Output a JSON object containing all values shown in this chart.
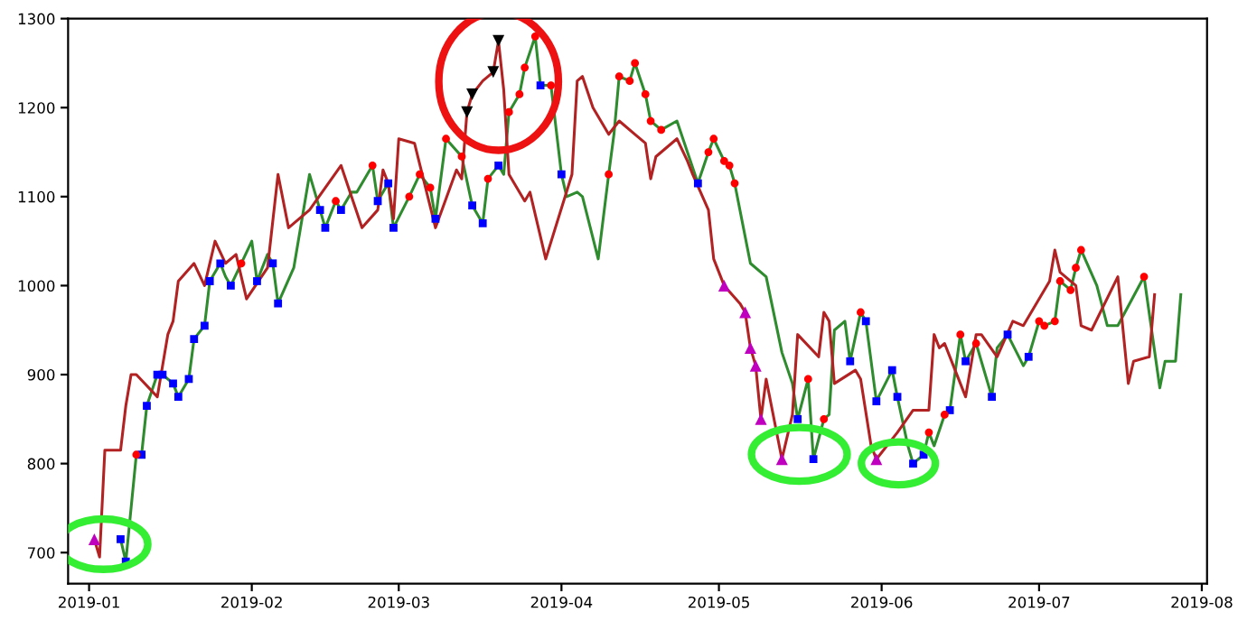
{
  "chart_data": {
    "type": "line",
    "xlim": [
      "2018-12-28",
      "2019-08-02"
    ],
    "xticks": [
      "2019-01",
      "2019-02",
      "2019-03",
      "2019-04",
      "2019-05",
      "2019-06",
      "2019-07",
      "2019-08"
    ],
    "ylim": [
      665,
      1300
    ],
    "yticks": [
      700,
      800,
      900,
      1000,
      1100,
      1200,
      1300
    ],
    "grid": false,
    "legend": false,
    "series": [
      {
        "type": "line",
        "color": "#2e8b2e",
        "marker": "none",
        "x": [
          "2019-01-07",
          "2019-01-08",
          "2019-01-10",
          "2019-01-11",
          "2019-01-12",
          "2019-01-14",
          "2019-01-15",
          "2019-01-17",
          "2019-01-18",
          "2019-01-20",
          "2019-01-21",
          "2019-01-23",
          "2019-01-24",
          "2019-01-26",
          "2019-01-27",
          "2019-01-28",
          "2019-01-30",
          "2019-02-01",
          "2019-02-02",
          "2019-02-04",
          "2019-02-05",
          "2019-02-06",
          "2019-02-09",
          "2019-02-12",
          "2019-02-14",
          "2019-02-15",
          "2019-02-17",
          "2019-02-18",
          "2019-02-20",
          "2019-02-21",
          "2019-02-24",
          "2019-02-25",
          "2019-02-27",
          "2019-02-28",
          "2019-03-03",
          "2019-03-05",
          "2019-03-07",
          "2019-03-08",
          "2019-03-10",
          "2019-03-13",
          "2019-03-15",
          "2019-03-17",
          "2019-03-18",
          "2019-03-20",
          "2019-03-21",
          "2019-03-22",
          "2019-03-24",
          "2019-03-25",
          "2019-03-27",
          "2019-03-28",
          "2019-03-30",
          "2019-04-01",
          "2019-04-02",
          "2019-04-04",
          "2019-04-05",
          "2019-04-08",
          "2019-04-10",
          "2019-04-11",
          "2019-04-12",
          "2019-04-14",
          "2019-04-15",
          "2019-04-17",
          "2019-04-18",
          "2019-04-20",
          "2019-04-23",
          "2019-04-27",
          "2019-04-29",
          "2019-04-30",
          "2019-05-02",
          "2019-05-03",
          "2019-05-04",
          "2019-05-07",
          "2019-05-10",
          "2019-05-13",
          "2019-05-15",
          "2019-05-16",
          "2019-05-18",
          "2019-05-19",
          "2019-05-21",
          "2019-05-22",
          "2019-05-23",
          "2019-05-25",
          "2019-05-26",
          "2019-05-28",
          "2019-05-29",
          "2019-05-31",
          "2019-06-03",
          "2019-06-04",
          "2019-06-06",
          "2019-06-07",
          "2019-06-09",
          "2019-06-10",
          "2019-06-11",
          "2019-06-13",
          "2019-06-14",
          "2019-06-16",
          "2019-06-17",
          "2019-06-19",
          "2019-06-22",
          "2019-06-23",
          "2019-06-25",
          "2019-06-28",
          "2019-06-29",
          "2019-07-01",
          "2019-07-02",
          "2019-07-04",
          "2019-07-05",
          "2019-07-07",
          "2019-07-08",
          "2019-07-09",
          "2019-07-12",
          "2019-07-14",
          "2019-07-16",
          "2019-07-21",
          "2019-07-24",
          "2019-07-25",
          "2019-07-27",
          "2019-07-28"
        ],
        "values": [
          715,
          690,
          810,
          810,
          865,
          900,
          900,
          890,
          875,
          895,
          940,
          955,
          1005,
          1025,
          1010,
          1000,
          1025,
          1050,
          1005,
          1035,
          1025,
          980,
          1020,
          1125,
          1085,
          1065,
          1095,
          1085,
          1105,
          1105,
          1135,
          1095,
          1115,
          1065,
          1100,
          1125,
          1110,
          1075,
          1165,
          1145,
          1090,
          1070,
          1120,
          1135,
          1125,
          1195,
          1215,
          1245,
          1280,
          1225,
          1225,
          1125,
          1100,
          1105,
          1100,
          1030,
          1125,
          1170,
          1235,
          1230,
          1250,
          1215,
          1185,
          1175,
          1185,
          1115,
          1150,
          1165,
          1140,
          1135,
          1115,
          1025,
          1010,
          925,
          890,
          850,
          895,
          805,
          850,
          855,
          950,
          960,
          915,
          970,
          960,
          870,
          905,
          875,
          820,
          800,
          810,
          835,
          820,
          855,
          860,
          945,
          915,
          935,
          875,
          930,
          945,
          910,
          920,
          960,
          955,
          960,
          1005,
          995,
          1020,
          1040,
          1000,
          955,
          955,
          1010,
          885,
          915,
          915,
          990
        ]
      },
      {
        "type": "line",
        "color": "#b22222",
        "marker": "none",
        "x": [
          "2019-01-02",
          "2019-01-03",
          "2019-01-04",
          "2019-01-07",
          "2019-01-08",
          "2019-01-09",
          "2019-01-10",
          "2019-01-14",
          "2019-01-16",
          "2019-01-17",
          "2019-01-18",
          "2019-01-21",
          "2019-01-23",
          "2019-01-25",
          "2019-01-27",
          "2019-01-29",
          "2019-01-31",
          "2019-02-04",
          "2019-02-06",
          "2019-02-08",
          "2019-02-12",
          "2019-02-18",
          "2019-02-20",
          "2019-02-22",
          "2019-02-25",
          "2019-02-26",
          "2019-02-27",
          "2019-02-28",
          "2019-03-01",
          "2019-03-04",
          "2019-03-08",
          "2019-03-12",
          "2019-03-13",
          "2019-03-14",
          "2019-03-15",
          "2019-03-17",
          "2019-03-19",
          "2019-03-20",
          "2019-03-21",
          "2019-03-22",
          "2019-03-25",
          "2019-03-26",
          "2019-03-29",
          "2019-04-03",
          "2019-04-04",
          "2019-04-05",
          "2019-04-07",
          "2019-04-10",
          "2019-04-12",
          "2019-04-15",
          "2019-04-17",
          "2019-04-18",
          "2019-04-19",
          "2019-04-23",
          "2019-04-25",
          "2019-04-26",
          "2019-04-29",
          "2019-04-30",
          "2019-05-02",
          "2019-05-05",
          "2019-05-06",
          "2019-05-07",
          "2019-05-08",
          "2019-05-09",
          "2019-05-10",
          "2019-05-13",
          "2019-05-15",
          "2019-05-16",
          "2019-05-20",
          "2019-05-21",
          "2019-05-22",
          "2019-05-23",
          "2019-05-27",
          "2019-05-28",
          "2019-05-30",
          "2019-05-31",
          "2019-06-04",
          "2019-06-07",
          "2019-06-10",
          "2019-06-11",
          "2019-06-12",
          "2019-06-13",
          "2019-06-15",
          "2019-06-17",
          "2019-06-19",
          "2019-06-20",
          "2019-06-23",
          "2019-06-26",
          "2019-06-28",
          "2019-07-03",
          "2019-07-04",
          "2019-07-05",
          "2019-07-08",
          "2019-07-09",
          "2019-07-11",
          "2019-07-16",
          "2019-07-18",
          "2019-07-19",
          "2019-07-22",
          "2019-07-23"
        ],
        "values": [
          715,
          695,
          815,
          815,
          865,
          900,
          900,
          875,
          945,
          960,
          1005,
          1025,
          1000,
          1050,
          1025,
          1035,
          985,
          1020,
          1125,
          1065,
          1085,
          1135,
          1100,
          1065,
          1085,
          1130,
          1115,
          1075,
          1165,
          1160,
          1065,
          1130,
          1120,
          1195,
          1215,
          1230,
          1240,
          1275,
          1220,
          1125,
          1095,
          1105,
          1030,
          1125,
          1230,
          1235,
          1200,
          1170,
          1185,
          1170,
          1160,
          1120,
          1145,
          1165,
          1140,
          1125,
          1085,
          1030,
          1000,
          980,
          970,
          930,
          910,
          850,
          895,
          805,
          855,
          945,
          920,
          970,
          960,
          890,
          905,
          895,
          820,
          805,
          835,
          860,
          860,
          945,
          930,
          935,
          905,
          875,
          945,
          945,
          920,
          960,
          955,
          1005,
          1040,
          1015,
          1000,
          955,
          950,
          1010,
          890,
          915,
          920,
          990
        ]
      },
      {
        "type": "scatter",
        "color": "#0000ff",
        "marker": "square",
        "x": [
          "2019-01-07",
          "2019-01-08",
          "2019-01-11",
          "2019-01-12",
          "2019-01-14",
          "2019-01-15",
          "2019-01-17",
          "2019-01-18",
          "2019-01-20",
          "2019-01-21",
          "2019-01-23",
          "2019-01-24",
          "2019-01-26",
          "2019-01-28",
          "2019-02-02",
          "2019-02-05",
          "2019-02-06",
          "2019-02-14",
          "2019-02-15",
          "2019-02-18",
          "2019-02-25",
          "2019-02-27",
          "2019-02-28",
          "2019-03-08",
          "2019-03-15",
          "2019-03-17",
          "2019-03-20",
          "2019-03-28",
          "2019-04-01",
          "2019-04-27",
          "2019-05-16",
          "2019-05-19",
          "2019-05-26",
          "2019-05-29",
          "2019-05-31",
          "2019-06-03",
          "2019-06-04",
          "2019-06-07",
          "2019-06-09",
          "2019-06-14",
          "2019-06-17",
          "2019-06-22",
          "2019-06-25",
          "2019-06-29"
        ],
        "values": [
          715,
          690,
          810,
          865,
          900,
          900,
          890,
          875,
          895,
          940,
          955,
          1005,
          1025,
          1000,
          1005,
          1025,
          980,
          1085,
          1065,
          1085,
          1095,
          1115,
          1065,
          1075,
          1090,
          1070,
          1135,
          1225,
          1125,
          1115,
          850,
          805,
          915,
          960,
          870,
          905,
          875,
          800,
          810,
          860,
          915,
          875,
          945,
          920
        ]
      },
      {
        "type": "scatter",
        "color": "#ff0000",
        "marker": "circle",
        "x": [
          "2019-01-10",
          "2019-01-30",
          "2019-02-17",
          "2019-02-24",
          "2019-03-03",
          "2019-03-05",
          "2019-03-07",
          "2019-03-10",
          "2019-03-13",
          "2019-03-18",
          "2019-03-22",
          "2019-03-24",
          "2019-03-25",
          "2019-03-27",
          "2019-03-30",
          "2019-04-10",
          "2019-04-12",
          "2019-04-14",
          "2019-04-15",
          "2019-04-17",
          "2019-04-18",
          "2019-04-20",
          "2019-04-29",
          "2019-04-30",
          "2019-05-02",
          "2019-05-03",
          "2019-05-04",
          "2019-05-18",
          "2019-05-21",
          "2019-05-28",
          "2019-06-10",
          "2019-06-13",
          "2019-06-16",
          "2019-06-19",
          "2019-07-01",
          "2019-07-02",
          "2019-07-04",
          "2019-07-05",
          "2019-07-07",
          "2019-07-08",
          "2019-07-09",
          "2019-07-21"
        ],
        "values": [
          810,
          1025,
          1095,
          1135,
          1100,
          1125,
          1110,
          1165,
          1145,
          1120,
          1195,
          1215,
          1245,
          1280,
          1225,
          1125,
          1235,
          1230,
          1250,
          1215,
          1185,
          1175,
          1150,
          1165,
          1140,
          1135,
          1115,
          895,
          850,
          970,
          835,
          855,
          945,
          935,
          960,
          955,
          960,
          1005,
          995,
          1020,
          1040,
          1010
        ]
      },
      {
        "type": "scatter",
        "color": "#bf00bf",
        "marker": "triangle",
        "x": [
          "2019-01-02",
          "2019-05-02",
          "2019-05-06",
          "2019-05-07",
          "2019-05-08",
          "2019-05-09",
          "2019-05-13",
          "2019-05-31"
        ],
        "values": [
          715,
          1000,
          970,
          930,
          910,
          850,
          805,
          805
        ]
      },
      {
        "type": "scatter",
        "color": "#000000",
        "marker": "triangle_down",
        "x": [
          "2019-03-14",
          "2019-03-15",
          "2019-03-19",
          "2019-03-20"
        ],
        "values": [
          1195,
          1215,
          1240,
          1275
        ]
      }
    ]
  }
}
